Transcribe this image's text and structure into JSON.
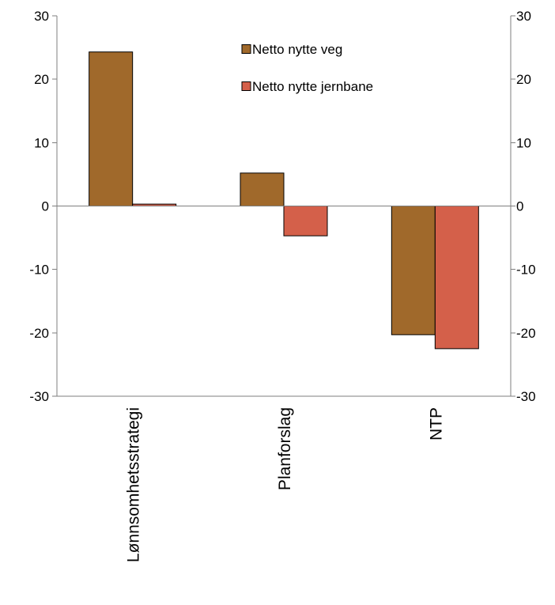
{
  "chart_data": {
    "type": "bar",
    "categories": [
      "Lønnsomhetsstrategi",
      "Planforslag",
      "NTP"
    ],
    "series": [
      {
        "name": "Netto nytte veg",
        "values": [
          24.3,
          5.2,
          -20.3
        ],
        "color": "#a0692b"
      },
      {
        "name": "Netto nytte jernbane",
        "values": [
          0.3,
          -4.7,
          -22.5
        ],
        "color": "#d4604a"
      }
    ],
    "ylim": [
      -30,
      30
    ],
    "yticks": [
      -30,
      -20,
      -10,
      0,
      10,
      20,
      30
    ],
    "ytick_labels": [
      "-30",
      "-20",
      "-10",
      "0",
      "10",
      "20",
      "30"
    ],
    "secondary_y_axis": true,
    "grid": false,
    "legend_position": "top-center",
    "title": "",
    "xlabel": "",
    "ylabel": ""
  }
}
